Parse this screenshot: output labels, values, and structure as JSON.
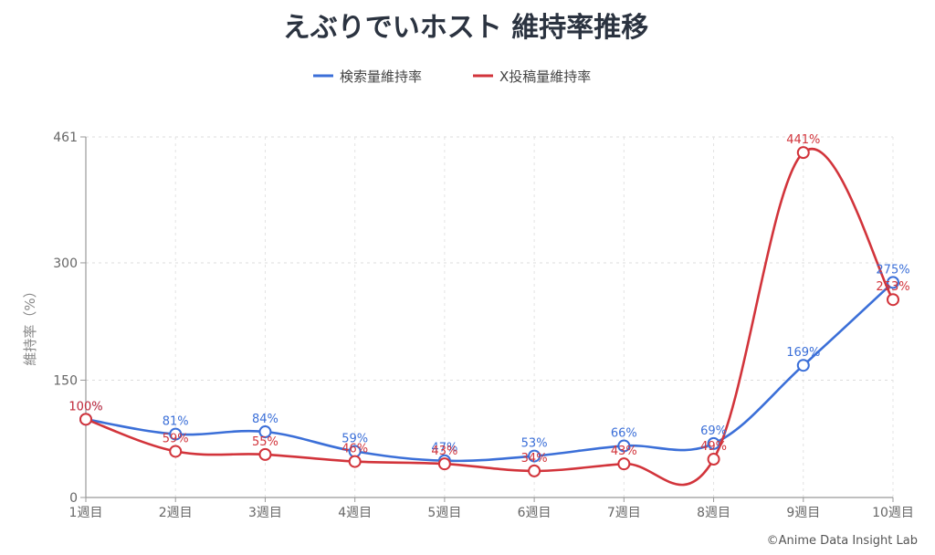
{
  "chart_data": {
    "type": "line",
    "title": "えぶりでいホスト 維持率推移",
    "ylabel": "維持率（%）",
    "xlabel": "",
    "categories": [
      "1週目",
      "2週目",
      "3週目",
      "4週目",
      "5週目",
      "6週目",
      "7週目",
      "8週目",
      "9週目",
      "10週目"
    ],
    "ylim": [
      0,
      461
    ],
    "yticks": [
      "0",
      "150",
      "300",
      "461"
    ],
    "ytick_values": [
      0,
      150,
      300,
      461
    ],
    "grid": true,
    "legend_position": "top-center",
    "series": [
      {
        "name": "検索量維持率",
        "color": "#3b6fd8",
        "values": [
          100,
          81,
          84,
          59,
          47,
          53,
          66,
          69,
          169,
          275
        ],
        "labels": [
          "100%",
          "81%",
          "84%",
          "59%",
          "47%",
          "53%",
          "66%",
          "69%",
          "169%",
          "275%"
        ]
      },
      {
        "name": "X投稿量維持率",
        "color": "#d2343b",
        "values": [
          100,
          59,
          55,
          46,
          43,
          34,
          43,
          49,
          441,
          253
        ],
        "labels": [
          "100%",
          "59%",
          "55%",
          "46%",
          "43%",
          "34%",
          "43%",
          "49%",
          "441%",
          "253%"
        ]
      }
    ]
  },
  "credit": "©Anime Data Insight Lab"
}
